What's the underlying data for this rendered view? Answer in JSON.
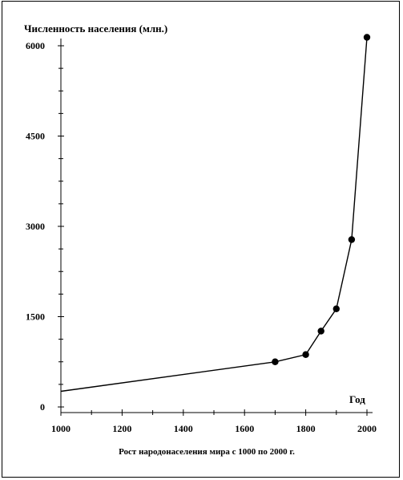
{
  "chart_data": {
    "type": "line",
    "title": "Численность населения (млн.)",
    "xlabel": "Год",
    "caption": "Рост народонаселения мира с 1000 по 2000 г.",
    "x_ticks": [
      "1000",
      "1200",
      "1400",
      "1600",
      "1800",
      "2000"
    ],
    "y_ticks": [
      "0",
      "1500",
      "3000",
      "4500",
      "6000"
    ],
    "xlim": [
      1000,
      2020
    ],
    "ylim": [
      0,
      6300
    ],
    "x": [
      1000,
      1700,
      1800,
      1850,
      1900,
      1950,
      2000
    ],
    "y": [
      260,
      750,
      870,
      1260,
      1630,
      2780,
      6140
    ],
    "markers": [
      false,
      true,
      true,
      true,
      true,
      true,
      true
    ],
    "grid": false,
    "line_color": "#000000"
  }
}
